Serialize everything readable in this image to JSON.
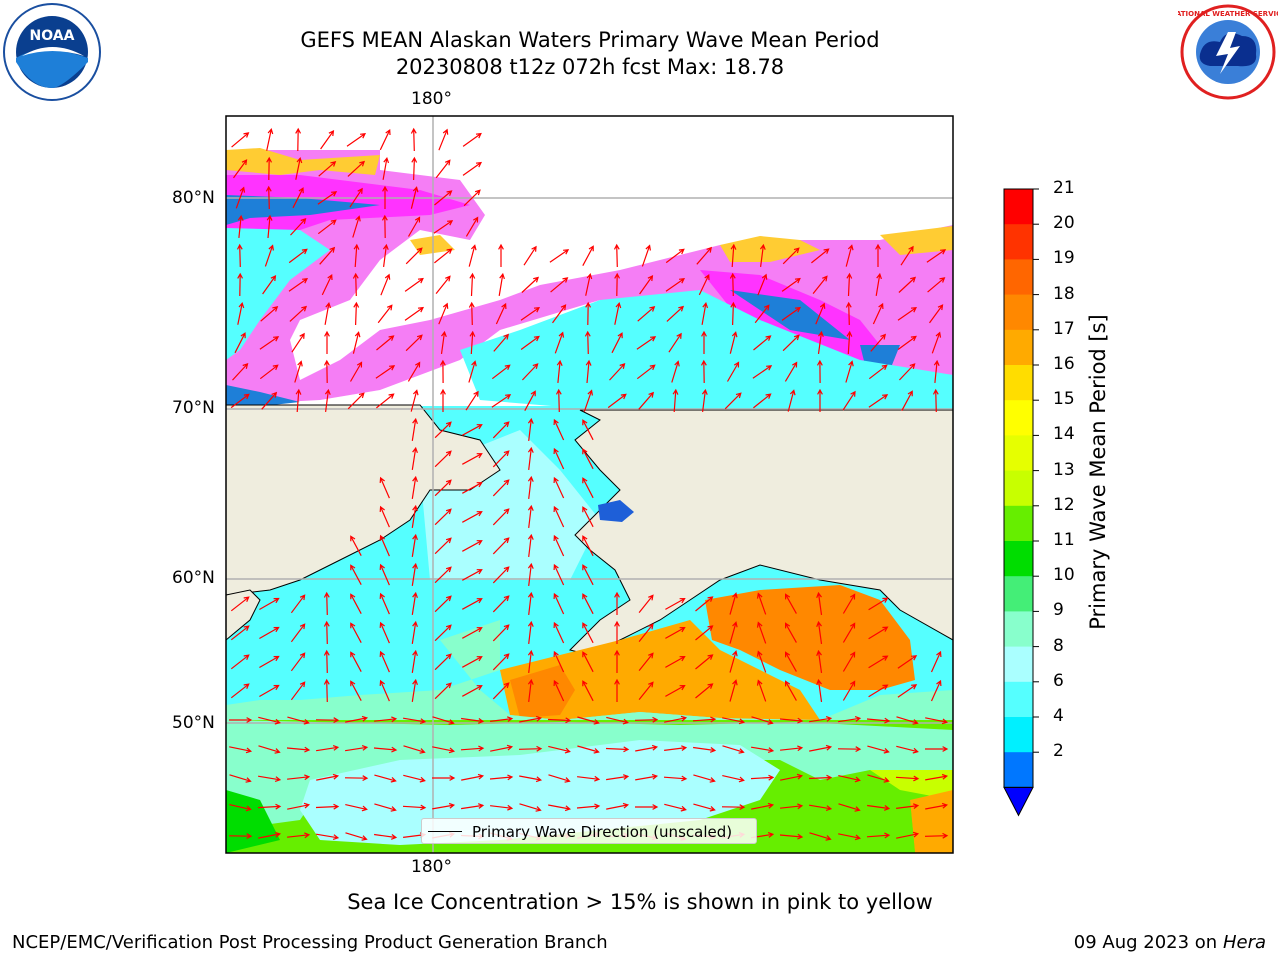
{
  "header": {
    "title_line1": "GEFS MEAN Alaskan Waters Primary Wave Mean Period",
    "title_line2": "20230808 t12z 072h fcst   Max: 18.78"
  },
  "logos": {
    "left": "noaa-logo",
    "left_text": "NOAA",
    "right": "national-weather-service-logo",
    "right_text": "NATIONAL WEATHER SERVICE"
  },
  "map": {
    "projection": "polar-stereographic",
    "longitude_label_top": "180°",
    "longitude_label_bottom": "180°",
    "latitude_labels": [
      "80°N",
      "70°N",
      "60°N",
      "50°N"
    ],
    "legend_entry": "Primary Wave Direction (unscaled)",
    "colors": {
      "land": "#efedde",
      "ice_pink": "#f57ef5",
      "ice_magenta": "#ff33ff",
      "arrow": "#ff0000"
    }
  },
  "colorbar": {
    "label": "Primary Wave Mean Period [s]",
    "ticks": [
      "21",
      "20",
      "19",
      "18",
      "17",
      "16",
      "15",
      "14",
      "13",
      "12",
      "11",
      "10",
      "9",
      "8",
      "6",
      "4",
      "2"
    ],
    "colors": [
      "#ff0000",
      "#ff3300",
      "#ff6600",
      "#ff8800",
      "#ffaa00",
      "#ffdd00",
      "#ffff00",
      "#e6ff00",
      "#c8ff00",
      "#66ee00",
      "#00dd00",
      "#44ee77",
      "#88ffcc",
      "#aaffff",
      "#55ffff",
      "#00f0ff",
      "#0077ff"
    ],
    "extend_color": "#0000ff"
  },
  "caption": "Sea Ice Concentration > 15% is shown in pink to yellow",
  "footer": {
    "left": "NCEP/EMC/Verification Post Processing Product Generation Branch",
    "date": "09 Aug 2023 on",
    "machine": "Hera"
  }
}
